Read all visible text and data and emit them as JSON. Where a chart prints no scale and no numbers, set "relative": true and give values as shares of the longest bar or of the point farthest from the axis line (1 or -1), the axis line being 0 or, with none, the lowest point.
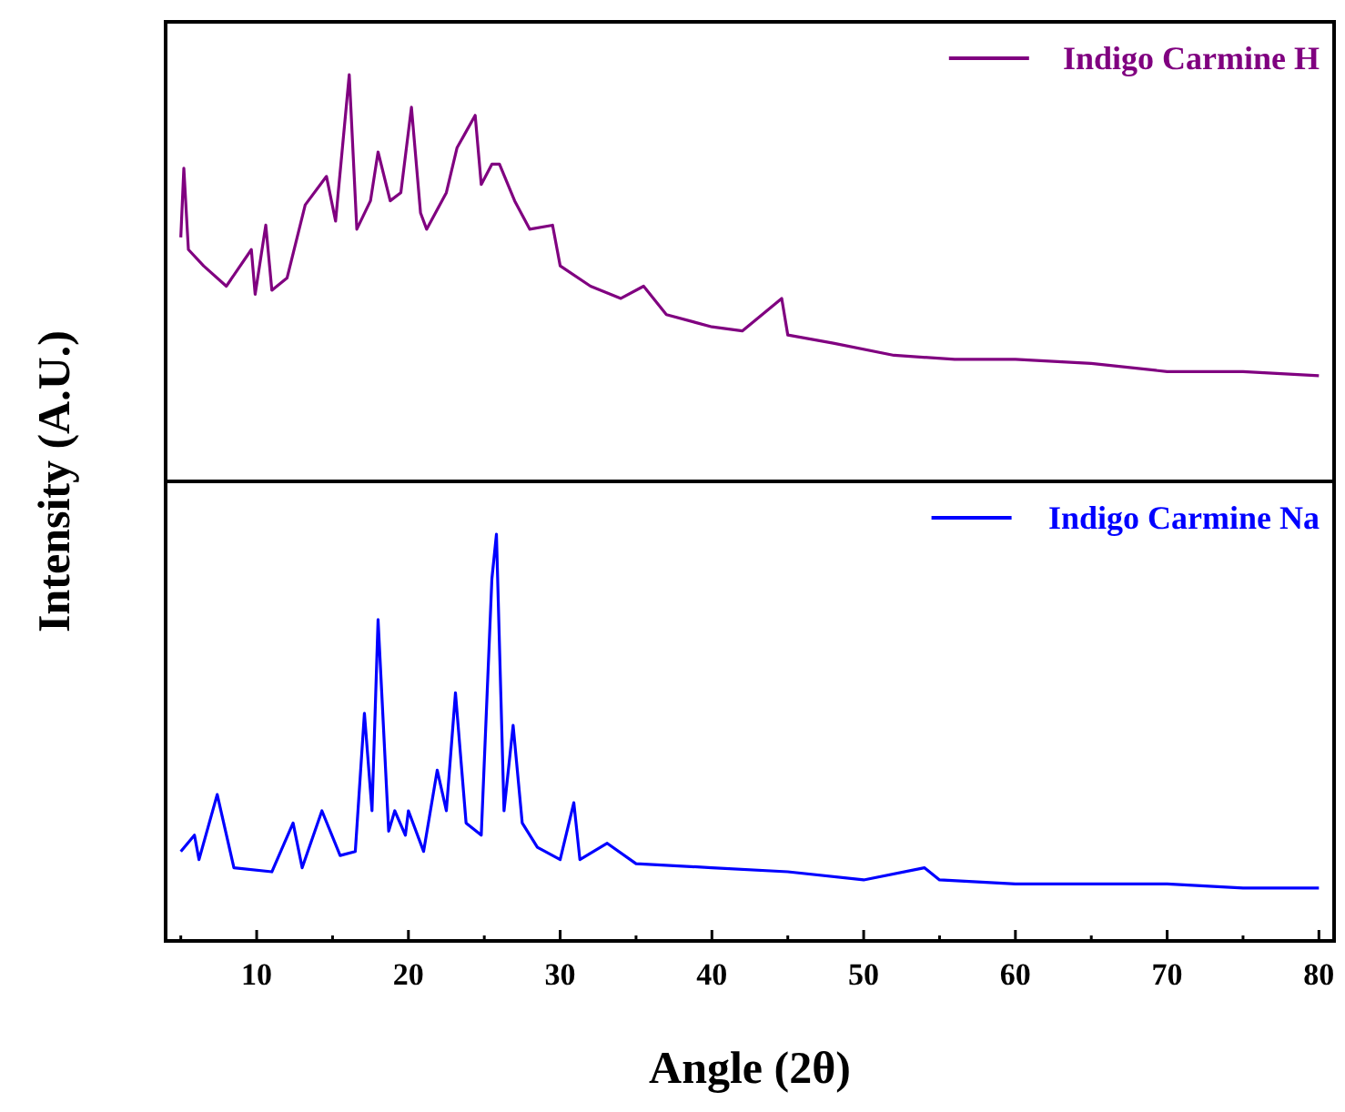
{
  "chart_data": [
    {
      "type": "line",
      "relative": true,
      "xlim": [
        4,
        81
      ],
      "tick_labels": false,
      "legend": "top right",
      "ylabel": "Intensity (A.U.)",
      "series": [
        {
          "name": "Indigo Carmine H",
          "color": "#800080",
          "x": [
            5.0,
            5.2,
            5.5,
            6.5,
            8,
            9.65,
            9.9,
            10.6,
            11.0,
            12.0,
            13.2,
            14.6,
            15.2,
            16.1,
            16.6,
            17.5,
            18.0,
            18.8,
            19.5,
            20.2,
            20.8,
            21.2,
            22.5,
            23.2,
            24.4,
            24.8,
            25.5,
            26.0,
            27.0,
            28,
            29.5,
            30,
            32,
            34,
            35.5,
            37,
            40,
            42,
            44.6,
            45,
            48,
            52,
            56,
            60,
            65,
            70,
            75,
            80
          ],
          "values": [
            0.6,
            0.77,
            0.57,
            0.53,
            0.48,
            0.57,
            0.46,
            0.63,
            0.47,
            0.5,
            0.68,
            0.75,
            0.64,
            1.0,
            0.62,
            0.69,
            0.81,
            0.69,
            0.71,
            0.92,
            0.66,
            0.62,
            0.71,
            0.82,
            0.9,
            0.73,
            0.78,
            0.78,
            0.69,
            0.62,
            0.63,
            0.53,
            0.48,
            0.45,
            0.48,
            0.41,
            0.38,
            0.37,
            0.45,
            0.36,
            0.34,
            0.31,
            0.3,
            0.3,
            0.29,
            0.27,
            0.27,
            0.26
          ]
        }
      ]
    },
    {
      "type": "line",
      "relative": true,
      "xlim": [
        4,
        81
      ],
      "tick_labels": "x",
      "legend": "top right",
      "xlabel": "Angle (2θ)",
      "xticks": [
        {
          "value": 5,
          "label": null
        },
        10,
        {
          "value": 15,
          "label": null
        },
        20,
        {
          "value": 25,
          "label": null
        },
        30,
        {
          "value": 35,
          "label": null
        },
        40,
        {
          "value": 45,
          "label": null
        },
        50,
        {
          "value": 55,
          "label": null
        },
        60,
        {
          "value": 65,
          "label": null
        },
        70,
        {
          "value": 75,
          "label": null
        },
        80
      ],
      "series": [
        {
          "name": "Indigo Carmine Na",
          "color": "#0000ff",
          "x": [
            5.0,
            5.9,
            6.2,
            7.4,
            8.5,
            11,
            12.4,
            13,
            14.3,
            15.5,
            16.5,
            17.1,
            17.6,
            18.0,
            18.7,
            19.1,
            19.8,
            20.0,
            21,
            21.9,
            22.5,
            23.1,
            23.8,
            24.8,
            25.5,
            25.8,
            26.3,
            26.9,
            27.5,
            28.5,
            30,
            30.9,
            31.3,
            33.1,
            35,
            40,
            45,
            50,
            54,
            55,
            60,
            65,
            70,
            75,
            80
          ],
          "values": [
            0.22,
            0.26,
            0.2,
            0.36,
            0.18,
            0.17,
            0.29,
            0.18,
            0.32,
            0.21,
            0.22,
            0.56,
            0.32,
            0.79,
            0.27,
            0.32,
            0.26,
            0.32,
            0.22,
            0.42,
            0.32,
            0.61,
            0.29,
            0.26,
            0.89,
            1.0,
            0.32,
            0.53,
            0.29,
            0.23,
            0.2,
            0.34,
            0.2,
            0.24,
            0.19,
            0.18,
            0.17,
            0.15,
            0.18,
            0.15,
            0.14,
            0.14,
            0.14,
            0.13,
            0.13
          ]
        }
      ]
    }
  ]
}
